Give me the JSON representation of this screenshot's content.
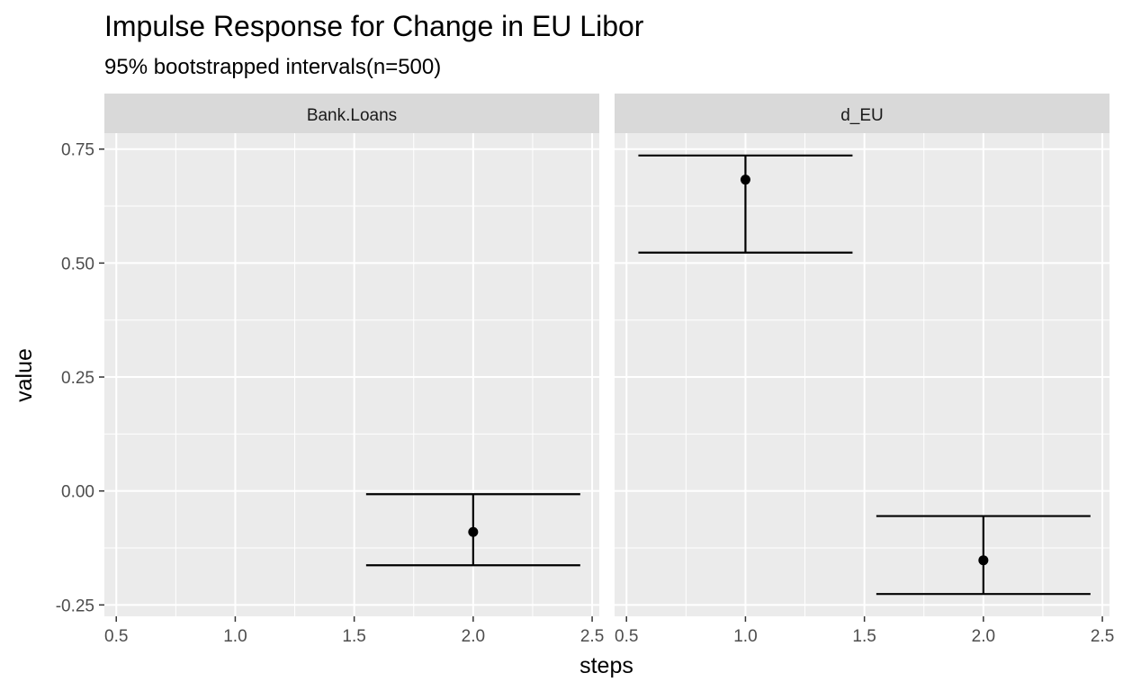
{
  "chart_data": {
    "type": "scatter",
    "title": "Impulse Response for Change in EU Libor",
    "subtitle": "95% bootstrapped intervals(n=500)",
    "xlabel": "steps",
    "ylabel": "value",
    "xlim": [
      0.45,
      2.53
    ],
    "ylim": [
      -0.275,
      0.785
    ],
    "x_ticks": [
      0.5,
      1.0,
      1.5,
      2.0,
      2.5
    ],
    "x_tick_labels": [
      "0.5",
      "1.0",
      "1.5",
      "2.0",
      "2.5"
    ],
    "y_ticks": [
      -0.25,
      0.0,
      0.25,
      0.5,
      0.75
    ],
    "y_tick_labels": [
      "-0.25",
      "0.00",
      "0.25",
      "0.50",
      "0.75"
    ],
    "grid": true,
    "errorbar_width": 0.9,
    "facets": [
      {
        "label": "Bank.Loans",
        "points": [
          {
            "x": 2.0,
            "y": -0.09,
            "lower": -0.163,
            "upper": -0.007
          }
        ]
      },
      {
        "label": "d_EU",
        "points": [
          {
            "x": 1.0,
            "y": 0.683,
            "lower": 0.523,
            "upper": 0.736
          },
          {
            "x": 2.0,
            "y": -0.152,
            "lower": -0.226,
            "upper": -0.055
          }
        ]
      }
    ]
  }
}
